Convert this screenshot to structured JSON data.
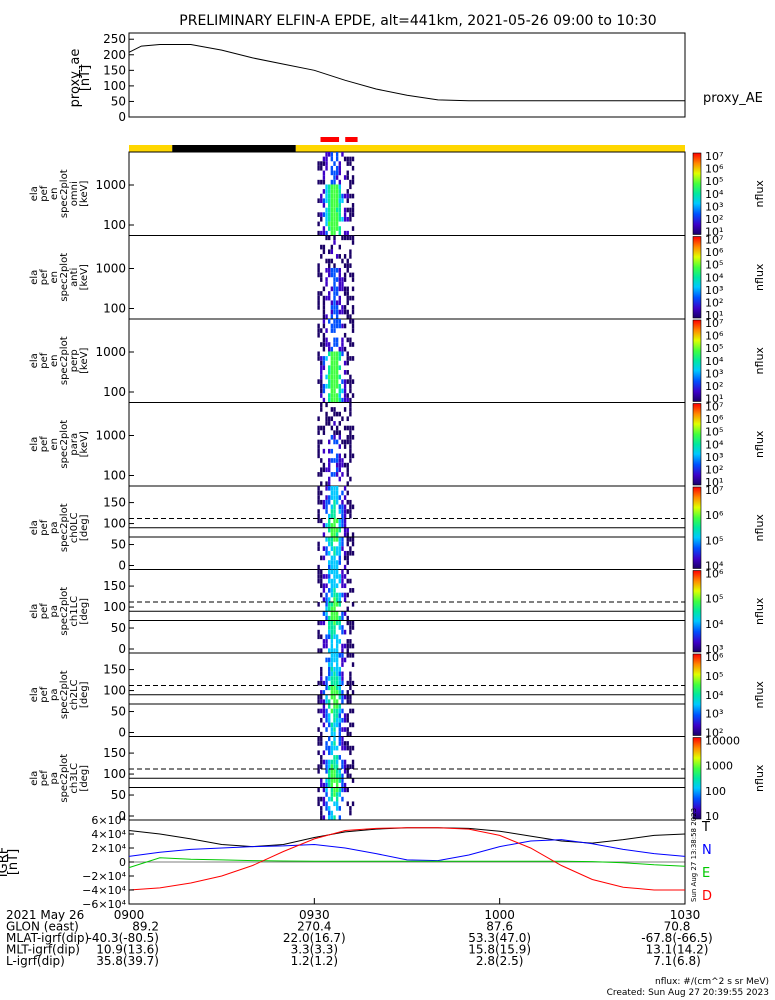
{
  "chart_data": {
    "type": "multi-panel-spectrogram",
    "title": "PRELIMINARY ELFIN-A EPDE, alt=441km, 2021-05-26 09:00 to 10:30",
    "x_range_minutes": [
      0,
      90
    ],
    "proxy_ae": {
      "ylabel": "proxy_ae\n[nT]",
      "legend": "proxy_AE",
      "yticks": [
        "250",
        "200",
        "150",
        "100",
        "50",
        "0"
      ],
      "ylim": [
        0,
        270
      ],
      "x": [
        0,
        2,
        5,
        10,
        15,
        20,
        25,
        30,
        35,
        40,
        45,
        50,
        55,
        60,
        70,
        80,
        90
      ],
      "y": [
        208,
        228,
        233,
        233,
        215,
        190,
        170,
        150,
        118,
        90,
        70,
        55,
        52,
        52,
        52,
        52,
        52
      ]
    },
    "status_bar": {
      "colors": [
        "#ffd700",
        "#000000",
        "#ffd700"
      ],
      "segments": [
        [
          0,
          7
        ],
        [
          7,
          27
        ],
        [
          27,
          90
        ]
      ],
      "markers": [
        [
          31,
          34
        ],
        [
          35,
          37
        ]
      ],
      "marker_color": "#ff0000"
    },
    "panels": [
      {
        "kind": "energy",
        "ylabel": "ela\npef\nen\nspec2plot\nomni\n[keV]",
        "yticks": [
          "1000",
          "100"
        ],
        "cbar_ticks": [
          "10⁷",
          "10⁶",
          "10⁵",
          "10⁴",
          "10³",
          "10²",
          "10¹"
        ],
        "cbar_label": "nflux"
      },
      {
        "kind": "energy",
        "ylabel": "ela\npef\nen\nspec2plot\nanti\n[keV]",
        "yticks": [
          "1000",
          "100"
        ],
        "cbar_ticks": [
          "10⁷",
          "10⁶",
          "10⁵",
          "10⁴",
          "10³",
          "10²",
          "10¹"
        ],
        "cbar_label": "nflux"
      },
      {
        "kind": "energy",
        "ylabel": "ela\npef\nen\nspec2plot\nperp\n[keV]",
        "yticks": [
          "1000",
          "100"
        ],
        "cbar_ticks": [
          "10⁷",
          "10⁶",
          "10⁵",
          "10⁴",
          "10³",
          "10²",
          "10¹"
        ],
        "cbar_label": "nflux"
      },
      {
        "kind": "energy",
        "ylabel": "ela\npef\nen\nspec2plot\npara\n[keV]",
        "yticks": [
          "1000",
          "100"
        ],
        "cbar_ticks": [
          "10⁷",
          "10⁶",
          "10⁵",
          "10⁴",
          "10³",
          "10²",
          "10¹"
        ],
        "cbar_label": "nflux"
      },
      {
        "kind": "pa",
        "ylabel": "ela\npef\npa\nspec2plot\nch0LC\n[deg]",
        "yticks": [
          "150",
          "100",
          "50",
          "0"
        ],
        "cbar_ticks": [
          "10⁷",
          "10⁶",
          "10⁵",
          "10⁴"
        ],
        "cbar_label": "nflux"
      },
      {
        "kind": "pa",
        "ylabel": "ela\npef\npa\nspec2plot\nch1LC\n[deg]",
        "yticks": [
          "150",
          "100",
          "50",
          "0"
        ],
        "cbar_ticks": [
          "10⁶",
          "10⁵",
          "10⁴",
          "10³"
        ],
        "cbar_label": "nflux"
      },
      {
        "kind": "pa",
        "ylabel": "ela\npef\npa\nspec2plot\nch2LC\n[deg]",
        "yticks": [
          "150",
          "100",
          "50",
          "0"
        ],
        "cbar_ticks": [
          "10⁶",
          "10⁵",
          "10⁴",
          "10³",
          "10²"
        ],
        "cbar_label": "nflux"
      },
      {
        "kind": "pa",
        "ylabel": "ela\npef\npa\nspec2plot\nch3LC\n[deg]",
        "yticks": [
          "150",
          "100",
          "50",
          "0"
        ],
        "cbar_ticks": [
          "10000",
          "1000",
          "100",
          "10"
        ],
        "cbar_label": "nflux"
      }
    ],
    "igrf": {
      "ylabel": "IGRF\n[nT]",
      "yticks": [
        "6×10⁴",
        "4×10⁴",
        "2×10⁴",
        "0",
        "−2×10⁴",
        "−4×10⁴",
        "−6×10⁴"
      ],
      "ylim": [
        -60000,
        60000
      ],
      "legend": [
        {
          "name": "T",
          "color": "#000000"
        },
        {
          "name": "N",
          "color": "#0000ff"
        },
        {
          "name": "E",
          "color": "#00c800"
        },
        {
          "name": "D",
          "color": "#ff0000"
        }
      ],
      "x": [
        0,
        5,
        10,
        15,
        20,
        25,
        30,
        35,
        40,
        45,
        50,
        55,
        60,
        65,
        70,
        75,
        80,
        85,
        90
      ],
      "series": {
        "T": [
          45000,
          40000,
          33000,
          25000,
          22000,
          25000,
          35000,
          43000,
          47000,
          49000,
          49000,
          48000,
          44000,
          37000,
          30000,
          27000,
          32000,
          38000,
          40000
        ],
        "N": [
          8000,
          14000,
          18000,
          20000,
          22000,
          23000,
          25000,
          20000,
          12000,
          3000,
          2000,
          10000,
          22000,
          30000,
          32000,
          26000,
          18000,
          12000,
          8000
        ],
        "E": [
          -8000,
          6000,
          4000,
          3000,
          2000,
          1500,
          1200,
          1000,
          1000,
          1000,
          1000,
          1000,
          1000,
          1000,
          1000,
          500,
          -1000,
          -4000,
          -6000
        ],
        "D": [
          -40000,
          -37000,
          -30000,
          -20000,
          -5000,
          15000,
          33000,
          45000,
          48000,
          49000,
          49000,
          47000,
          38000,
          20000,
          -5000,
          -25000,
          -36000,
          -40000,
          -40000
        ]
      }
    },
    "xticks": [
      "0900",
      "0930",
      "1000",
      "1030"
    ],
    "xtick_positions_min": [
      0,
      30,
      60,
      90
    ],
    "ephemeris": [
      {
        "label": "2021 May 26",
        "values": [
          "0900",
          "0930",
          "1000",
          "1030"
        ]
      },
      {
        "label": "GLON (east)",
        "values": [
          "89.2",
          "270.4",
          "87.6",
          "70.8"
        ]
      },
      {
        "label": "MLAT-igrf(dip)",
        "values": [
          "-40.3(-80.5)",
          "22.0(16.7)",
          "53.3(47.0)",
          "-67.8(-66.5)"
        ]
      },
      {
        "label": "MLT-igrf(dip)",
        "values": [
          "10.9(13.6)",
          "3.3(3.3)",
          "15.8(15.9)",
          "13.1(14.2)"
        ]
      },
      {
        "label": "L-igrf(dip)",
        "values": [
          "35.8(39.7)",
          "1.2(1.2)",
          "2.8(2.5)",
          "7.1(6.8)"
        ]
      }
    ],
    "side_stamp": "Sun Aug 27 13:38:58 2023",
    "units_note": "nflux: #/(cm^2 s sr MeV)",
    "created_note": "Created: Sun Aug 27 20:39:55 2023"
  }
}
